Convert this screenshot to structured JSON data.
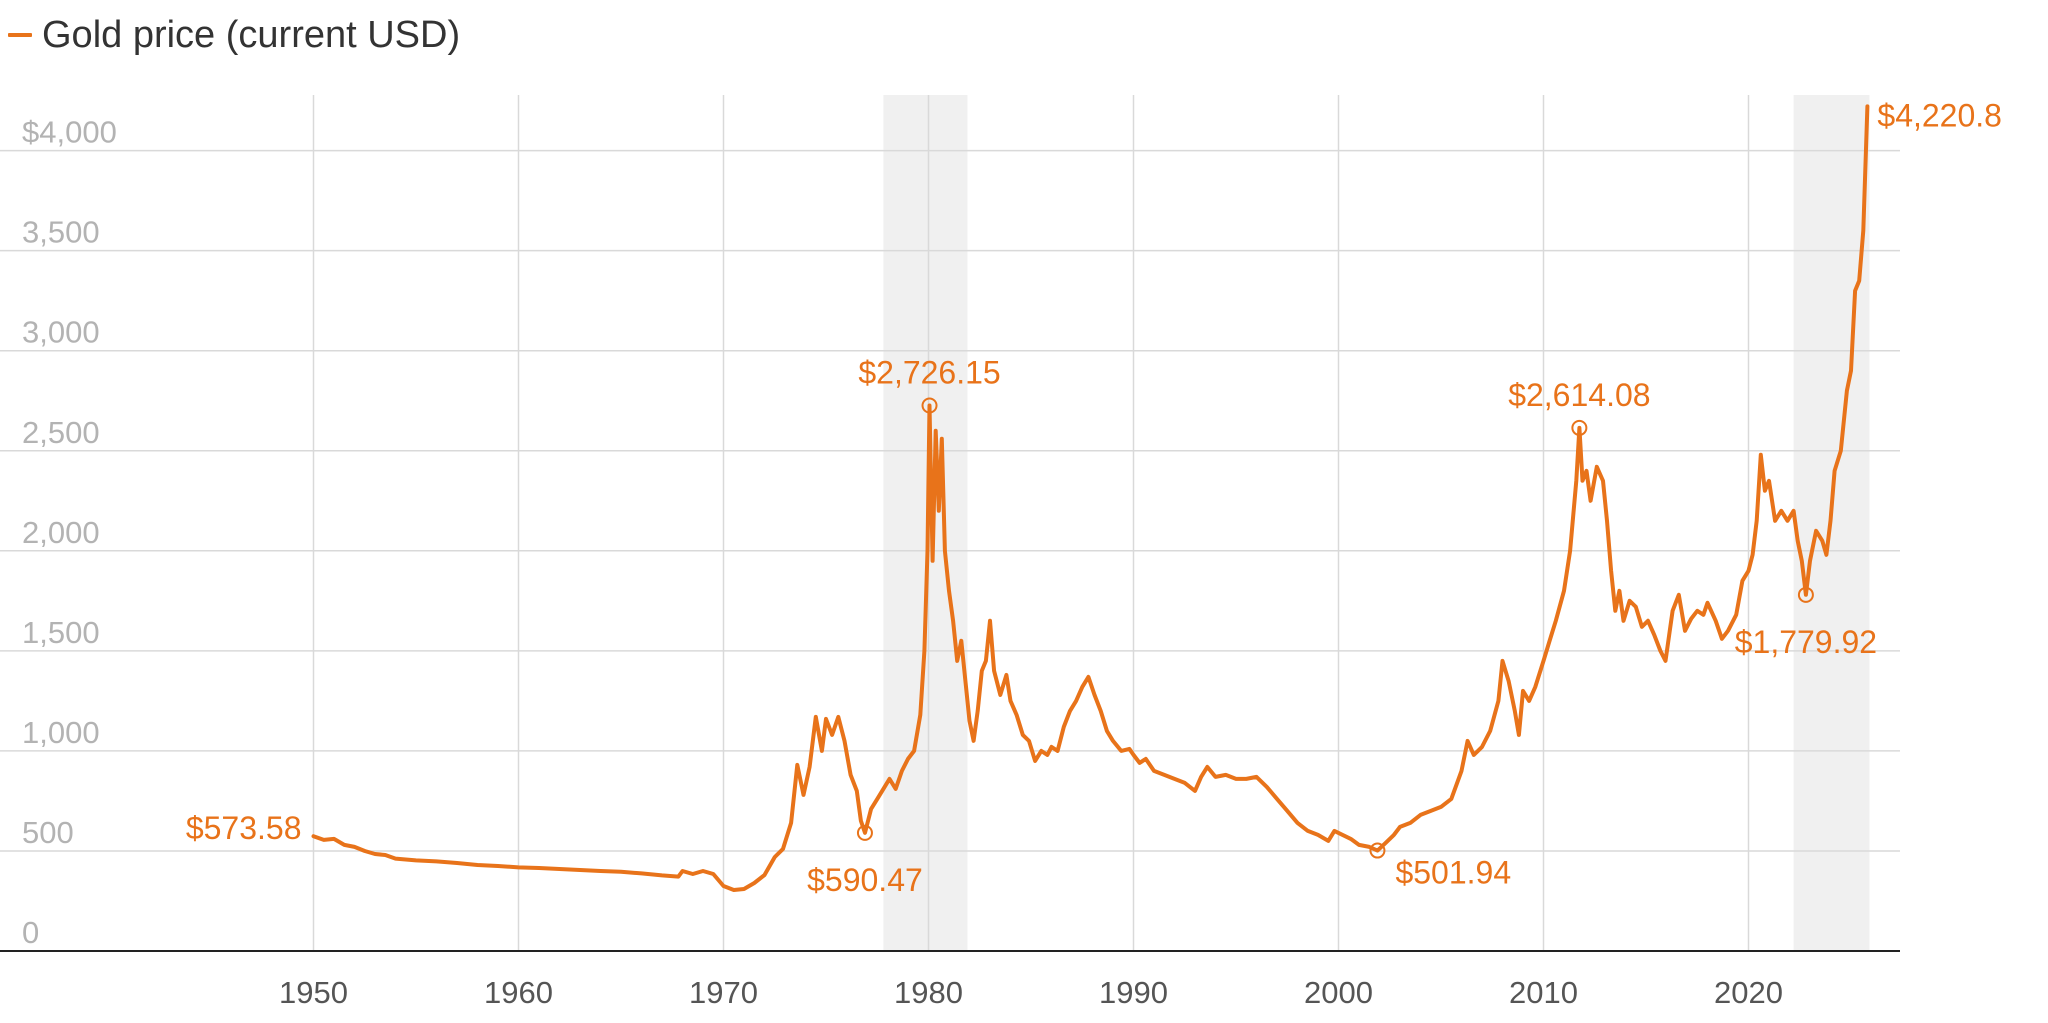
{
  "legend": {
    "label": "Gold price (current USD)",
    "color": "#e8731a"
  },
  "chart_data": {
    "type": "line",
    "title": "",
    "xlabel": "",
    "ylabel": "",
    "xlim": [
      1943,
      2026.5
    ],
    "ylim": [
      0,
      4300
    ],
    "y_ticks": [
      0,
      500,
      1000,
      1500,
      2000,
      2500,
      3000,
      3500,
      4000
    ],
    "y_tick_labels": [
      "0",
      "500",
      "1,000",
      "1,500",
      "2,000",
      "2,500",
      "3,000",
      "3,500",
      "$4,000"
    ],
    "x_ticks": [
      1950,
      1960,
      1970,
      1980,
      1990,
      2000,
      2010,
      2020
    ],
    "x_tick_labels": [
      "1950",
      "1960",
      "1970",
      "1980",
      "1990",
      "2000",
      "2010",
      "2020"
    ],
    "grid": true,
    "shaded_periods": [
      [
        1977.8,
        1981.9
      ],
      [
        2022.2,
        2025.9
      ]
    ],
    "series": [
      {
        "name": "Gold price (current USD)",
        "color": "#e8731a",
        "points": [
          [
            1950,
            573.58
          ],
          [
            1950.5,
            555
          ],
          [
            1951,
            560
          ],
          [
            1951.5,
            530
          ],
          [
            1952,
            520
          ],
          [
            1952.5,
            500
          ],
          [
            1953,
            485
          ],
          [
            1953.5,
            480
          ],
          [
            1954,
            462
          ],
          [
            1955,
            453
          ],
          [
            1956,
            448
          ],
          [
            1957,
            440
          ],
          [
            1958,
            430
          ],
          [
            1959,
            425
          ],
          [
            1960,
            418
          ],
          [
            1961,
            415
          ],
          [
            1962,
            410
          ],
          [
            1963,
            405
          ],
          [
            1964,
            400
          ],
          [
            1965,
            396
          ],
          [
            1966,
            388
          ],
          [
            1967,
            378
          ],
          [
            1967.8,
            372
          ],
          [
            1968,
            400
          ],
          [
            1968.5,
            385
          ],
          [
            1969,
            400
          ],
          [
            1969.5,
            385
          ],
          [
            1970,
            325
          ],
          [
            1970.5,
            305
          ],
          [
            1971,
            310
          ],
          [
            1971.5,
            340
          ],
          [
            1972,
            380
          ],
          [
            1972.5,
            470
          ],
          [
            1972.9,
            510
          ],
          [
            1973.3,
            640
          ],
          [
            1973.6,
            930
          ],
          [
            1973.9,
            780
          ],
          [
            1974.2,
            920
          ],
          [
            1974.5,
            1170
          ],
          [
            1974.8,
            1000
          ],
          [
            1975,
            1160
          ],
          [
            1975.3,
            1080
          ],
          [
            1975.6,
            1170
          ],
          [
            1975.9,
            1050
          ],
          [
            1976.2,
            880
          ],
          [
            1976.5,
            800
          ],
          [
            1976.7,
            650
          ],
          [
            1976.9,
            590.47
          ],
          [
            1977.2,
            710
          ],
          [
            1977.5,
            760
          ],
          [
            1977.8,
            810
          ],
          [
            1978.1,
            860
          ],
          [
            1978.4,
            810
          ],
          [
            1978.7,
            900
          ],
          [
            1979,
            960
          ],
          [
            1979.3,
            1000
          ],
          [
            1979.6,
            1180
          ],
          [
            1979.8,
            1500
          ],
          [
            1979.95,
            2000
          ],
          [
            1980.05,
            2726.15
          ],
          [
            1980.2,
            1950
          ],
          [
            1980.35,
            2600
          ],
          [
            1980.5,
            2200
          ],
          [
            1980.65,
            2560
          ],
          [
            1980.8,
            2000
          ],
          [
            1981,
            1800
          ],
          [
            1981.2,
            1650
          ],
          [
            1981.4,
            1450
          ],
          [
            1981.6,
            1550
          ],
          [
            1981.8,
            1350
          ],
          [
            1982,
            1150
          ],
          [
            1982.2,
            1050
          ],
          [
            1982.4,
            1200
          ],
          [
            1982.6,
            1400
          ],
          [
            1982.8,
            1450
          ],
          [
            1983,
            1650
          ],
          [
            1983.2,
            1400
          ],
          [
            1983.5,
            1280
          ],
          [
            1983.8,
            1380
          ],
          [
            1984,
            1250
          ],
          [
            1984.3,
            1180
          ],
          [
            1984.6,
            1080
          ],
          [
            1984.9,
            1050
          ],
          [
            1985.2,
            950
          ],
          [
            1985.5,
            1000
          ],
          [
            1985.8,
            980
          ],
          [
            1986,
            1020
          ],
          [
            1986.3,
            1000
          ],
          [
            1986.6,
            1120
          ],
          [
            1986.9,
            1200
          ],
          [
            1987.2,
            1250
          ],
          [
            1987.5,
            1320
          ],
          [
            1987.8,
            1370
          ],
          [
            1988.1,
            1280
          ],
          [
            1988.4,
            1200
          ],
          [
            1988.7,
            1100
          ],
          [
            1989,
            1050
          ],
          [
            1989.4,
            1000
          ],
          [
            1989.8,
            1010
          ],
          [
            1990,
            980
          ],
          [
            1990.3,
            940
          ],
          [
            1990.6,
            960
          ],
          [
            1991,
            900
          ],
          [
            1991.5,
            880
          ],
          [
            1992,
            860
          ],
          [
            1992.5,
            840
          ],
          [
            1993,
            800
          ],
          [
            1993.3,
            870
          ],
          [
            1993.6,
            920
          ],
          [
            1994,
            870
          ],
          [
            1994.5,
            880
          ],
          [
            1995,
            860
          ],
          [
            1995.5,
            860
          ],
          [
            1996,
            870
          ],
          [
            1996.5,
            820
          ],
          [
            1997,
            760
          ],
          [
            1997.5,
            700
          ],
          [
            1998,
            640
          ],
          [
            1998.5,
            600
          ],
          [
            1999,
            580
          ],
          [
            1999.5,
            550
          ],
          [
            1999.8,
            600
          ],
          [
            2000.2,
            580
          ],
          [
            2000.6,
            560
          ],
          [
            2001,
            530
          ],
          [
            2001.5,
            520
          ],
          [
            2001.9,
            501.94
          ],
          [
            2002.3,
            540
          ],
          [
            2002.7,
            580
          ],
          [
            2003,
            620
          ],
          [
            2003.5,
            640
          ],
          [
            2004,
            680
          ],
          [
            2004.5,
            700
          ],
          [
            2005,
            720
          ],
          [
            2005.5,
            760
          ],
          [
            2006,
            900
          ],
          [
            2006.3,
            1050
          ],
          [
            2006.6,
            980
          ],
          [
            2007,
            1020
          ],
          [
            2007.4,
            1100
          ],
          [
            2007.8,
            1250
          ],
          [
            2008,
            1450
          ],
          [
            2008.3,
            1350
          ],
          [
            2008.6,
            1200
          ],
          [
            2008.8,
            1080
          ],
          [
            2009,
            1300
          ],
          [
            2009.3,
            1250
          ],
          [
            2009.6,
            1320
          ],
          [
            2010,
            1450
          ],
          [
            2010.3,
            1550
          ],
          [
            2010.6,
            1650
          ],
          [
            2011,
            1800
          ],
          [
            2011.3,
            2000
          ],
          [
            2011.6,
            2350
          ],
          [
            2011.75,
            2614.08
          ],
          [
            2011.9,
            2350
          ],
          [
            2012.1,
            2400
          ],
          [
            2012.3,
            2250
          ],
          [
            2012.6,
            2420
          ],
          [
            2012.9,
            2350
          ],
          [
            2013.1,
            2150
          ],
          [
            2013.3,
            1900
          ],
          [
            2013.5,
            1700
          ],
          [
            2013.7,
            1800
          ],
          [
            2013.9,
            1650
          ],
          [
            2014.2,
            1750
          ],
          [
            2014.5,
            1720
          ],
          [
            2014.8,
            1620
          ],
          [
            2015.1,
            1650
          ],
          [
            2015.4,
            1580
          ],
          [
            2015.7,
            1500
          ],
          [
            2015.95,
            1450
          ],
          [
            2016.3,
            1700
          ],
          [
            2016.6,
            1780
          ],
          [
            2016.9,
            1600
          ],
          [
            2017.2,
            1660
          ],
          [
            2017.5,
            1700
          ],
          [
            2017.8,
            1680
          ],
          [
            2018,
            1740
          ],
          [
            2018.4,
            1650
          ],
          [
            2018.7,
            1560
          ],
          [
            2019,
            1600
          ],
          [
            2019.4,
            1680
          ],
          [
            2019.7,
            1850
          ],
          [
            2020,
            1900
          ],
          [
            2020.2,
            1980
          ],
          [
            2020.4,
            2150
          ],
          [
            2020.6,
            2480
          ],
          [
            2020.8,
            2300
          ],
          [
            2021,
            2350
          ],
          [
            2021.3,
            2150
          ],
          [
            2021.6,
            2200
          ],
          [
            2021.9,
            2150
          ],
          [
            2022.2,
            2200
          ],
          [
            2022.4,
            2050
          ],
          [
            2022.6,
            1950
          ],
          [
            2022.8,
            1779.92
          ],
          [
            2023,
            1950
          ],
          [
            2023.3,
            2100
          ],
          [
            2023.6,
            2050
          ],
          [
            2023.8,
            1980
          ],
          [
            2024,
            2150
          ],
          [
            2024.2,
            2400
          ],
          [
            2024.5,
            2500
          ],
          [
            2024.8,
            2800
          ],
          [
            2025,
            2900
          ],
          [
            2025.2,
            3300
          ],
          [
            2025.4,
            3350
          ],
          [
            2025.6,
            3600
          ],
          [
            2025.8,
            4220.8
          ]
        ]
      }
    ],
    "annotations": [
      {
        "x": 1950,
        "y": 573.58,
        "text": "$573.58",
        "pos": "left",
        "marker": false
      },
      {
        "x": 1976.9,
        "y": 590.47,
        "text": "$590.47",
        "pos": "below",
        "marker": true
      },
      {
        "x": 1980.05,
        "y": 2726.15,
        "text": "$2,726.15",
        "pos": "above",
        "marker": true
      },
      {
        "x": 2001.9,
        "y": 501.94,
        "text": "$501.94",
        "pos": "right",
        "marker": true
      },
      {
        "x": 2011.75,
        "y": 2614.08,
        "text": "$2,614.08",
        "pos": "above",
        "marker": true
      },
      {
        "x": 2022.8,
        "y": 1779.92,
        "text": "$1,779.92",
        "pos": "below",
        "marker": true
      },
      {
        "x": 2025.8,
        "y": 4220.8,
        "text": "$4,220.8",
        "pos": "right",
        "marker": false
      }
    ]
  }
}
